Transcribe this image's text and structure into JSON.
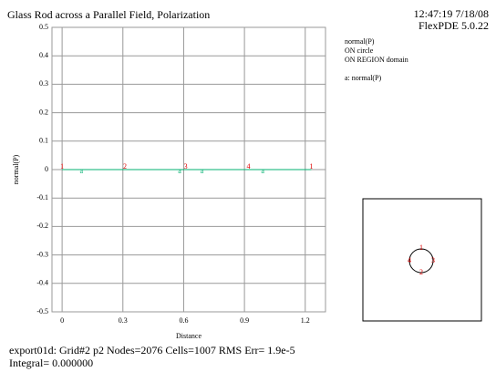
{
  "chart_data": {
    "type": "line",
    "title": "Glass Rod across a Parallel Field, Polarization",
    "timestamp": "12:47:19 7/18/08",
    "software": "FlexPDE 5.0.22",
    "legend_lines": [
      "normal(P)",
      "ON circle",
      "ON REGION domain"
    ],
    "x_label": "Distance",
    "y_label": "normal(P)",
    "xlim": [
      -0.05,
      1.3
    ],
    "ylim": [
      -0.5,
      0.5
    ],
    "xticks": [
      0,
      0.3,
      0.6,
      0.9,
      1.2
    ],
    "yticks": [
      0.5,
      0.4,
      0.3,
      0.2,
      0.1,
      0,
      -0.1,
      -0.2,
      -0.3,
      -0.4,
      -0.5
    ],
    "grid": true,
    "x": [
      0,
      1.23
    ],
    "series": [
      {
        "name": "a: normal(P)",
        "color": "#00b070",
        "values": [
          0,
          0
        ]
      }
    ],
    "curve_markers": {
      "label": "a",
      "x": [
        0.095,
        0.58,
        0.69,
        0.99
      ],
      "values": [
        0,
        0,
        0,
        0
      ]
    },
    "boundary_markers": {
      "labels": [
        "1",
        "2",
        "3",
        "4",
        "1"
      ],
      "x": [
        0,
        0.31,
        0.61,
        0.92,
        1.23
      ],
      "color": "#e00000"
    },
    "inset_labels": [
      "1",
      "2",
      "3",
      "4"
    ],
    "footer": [
      "export01d:  Grid#2  p2  Nodes=2076 Cells=1007 RMS Err= 1.9e-5",
      "Integral=  0.000000"
    ]
  }
}
